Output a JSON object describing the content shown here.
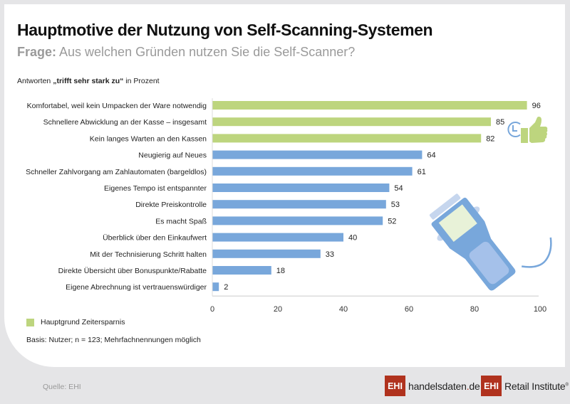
{
  "header": {
    "title": "Hauptmotive der Nutzung von Self-Scanning-Systemen",
    "question_prefix": "Frage:",
    "question_text": " Aus welchen Gründen nutzen Sie die Self-Scanner?",
    "unit_note_prefix": "Antworten ",
    "unit_note_bold": "„trifft sehr stark zu“",
    "unit_note_suffix": " in Prozent"
  },
  "colors": {
    "highlight": "#bdd57e",
    "default": "#78a7db",
    "brand": "#b0321e",
    "background": "#e5e5e7"
  },
  "chart_data": {
    "type": "bar",
    "orientation": "horizontal",
    "title": "Hauptmotive der Nutzung von Self-Scanning-Systemen",
    "subtitle": "Frage: Aus welchen Gründen nutzen Sie die Self-Scanner?",
    "xlabel": "Antworten „trifft sehr stark zu“ in Prozent",
    "ylabel": "",
    "xlim": [
      0,
      100
    ],
    "xticks": [
      0,
      20,
      40,
      60,
      80,
      100
    ],
    "grid": false,
    "categories": [
      "Komfortabel, weil kein Umpacken der Ware notwendig",
      "Schnellere Abwicklung an der Kasse – insgesamt",
      "Kein langes Warten an den Kassen",
      "Neugierig auf Neues",
      "Schneller Zahlvorgang am Zahlautomaten (bargeldlos)",
      "Eigenes Tempo ist entspannter",
      "Direkte Preiskontrolle",
      "Es macht Spaß",
      "Überblick über den Einkaufwert",
      "Mit der Technisierung Schritt halten",
      "Direkte Übersicht über Bonuspunkte/Rabatte",
      "Eigene Abrechnung ist vertrauenswürdiger"
    ],
    "values": [
      96,
      85,
      82,
      64,
      61,
      54,
      53,
      52,
      40,
      33,
      18,
      2
    ],
    "highlighted": [
      true,
      true,
      true,
      false,
      false,
      false,
      false,
      false,
      false,
      false,
      false,
      false
    ],
    "legend": [
      {
        "label": "Hauptgrund Zeitersparnis",
        "color": "#bdd57e"
      }
    ],
    "legend_position": "bottom-left"
  },
  "footer": {
    "basis": "Basis: Nutzer; n = 123; Mehrfachnennungen möglich",
    "source": "Quelle: EHI",
    "logo1_box": "EHI",
    "logo1_text": "handelsdaten",
    "logo1_dot": ".",
    "logo1_tld": "de",
    "logo2_box": "EHI",
    "logo2_text": "Retail Institute",
    "logo2_reg": "®"
  },
  "icons": {
    "clock": "clock-icon",
    "thumbs_up": "thumbs-up-icon",
    "scanner": "handheld-scanner-icon"
  }
}
